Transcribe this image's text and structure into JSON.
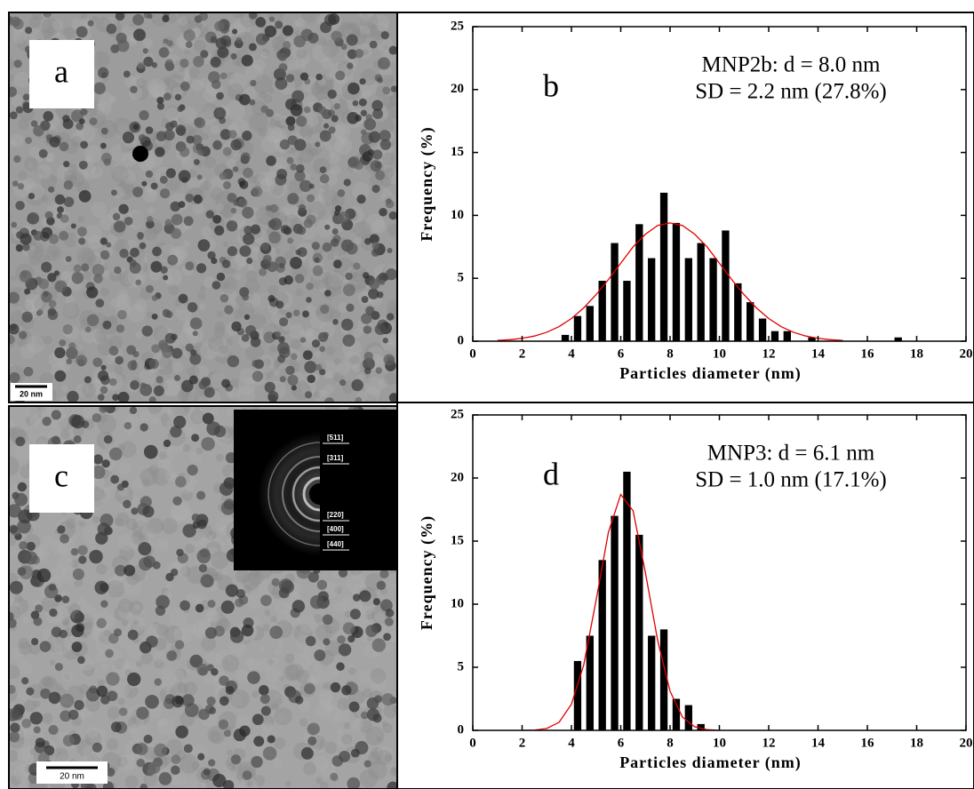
{
  "images": [
    {
      "label": "a",
      "scale_bar": "20 nm"
    },
    {
      "label": "c",
      "scale_bar": "20 nm",
      "inset_labels": [
        "[511]",
        "[311]",
        "[220]",
        "[400]",
        "[440]"
      ]
    }
  ],
  "chart_data": [
    {
      "type": "bar",
      "panel_label": "b",
      "annotations": [
        "MNP2b: d = 8.0 nm",
        "SD = 2.2 nm (27.8%)"
      ],
      "xlabel": "Particles diameter (nm)",
      "ylabel": "Frequency (%)",
      "x": [
        3.75,
        4.25,
        4.75,
        5.25,
        5.75,
        6.25,
        6.75,
        7.25,
        7.75,
        8.25,
        8.75,
        9.25,
        9.75,
        10.25,
        10.75,
        11.25,
        11.75,
        12.25,
        12.75,
        13.75,
        17.25
      ],
      "values": [
        0.5,
        2.0,
        2.8,
        4.8,
        7.8,
        4.8,
        9.3,
        6.6,
        11.8,
        9.4,
        6.6,
        7.8,
        6.6,
        8.8,
        4.6,
        3.1,
        1.8,
        0.8,
        0.8,
        0.3,
        0.3
      ],
      "color": "#000000",
      "fit": {
        "color": "#e00000",
        "x": [
          1,
          1.5,
          2,
          2.5,
          3,
          3.5,
          4,
          4.5,
          5,
          5.5,
          6,
          6.5,
          7,
          7.5,
          8,
          8.5,
          9,
          9.5,
          10,
          10.5,
          11,
          11.5,
          12,
          12.5,
          13,
          13.5,
          14,
          14.5,
          15
        ],
        "values": [
          0.06,
          0.12,
          0.23,
          0.41,
          0.71,
          1.16,
          1.8,
          2.65,
          3.7,
          4.9,
          6.2,
          7.5,
          8.5,
          9.2,
          9.4,
          9.2,
          8.5,
          7.5,
          6.2,
          4.9,
          3.7,
          2.65,
          1.8,
          1.16,
          0.71,
          0.41,
          0.23,
          0.12,
          0.06
        ]
      },
      "xlim": [
        0,
        20
      ],
      "xticks": [
        0,
        2,
        4,
        6,
        8,
        10,
        12,
        14,
        16,
        18,
        20
      ],
      "ylim": [
        0,
        25
      ],
      "yticks": [
        0,
        5,
        10,
        15,
        20,
        25
      ]
    },
    {
      "type": "bar",
      "panel_label": "d",
      "annotations": [
        "MNP3: d = 6.1 nm",
        "SD = 1.0 nm (17.1%)"
      ],
      "xlabel": "Particles diameter (nm)",
      "ylabel": "Frequency (%)",
      "x": [
        4.25,
        4.75,
        5.25,
        5.75,
        6.25,
        6.75,
        7.25,
        7.75,
        8.25,
        8.75,
        9.25
      ],
      "values": [
        5.5,
        7.5,
        13.5,
        17.0,
        20.5,
        15.5,
        7.5,
        8.0,
        2.5,
        2.0,
        0.5
      ],
      "color": "#000000",
      "fit": {
        "color": "#e00000",
        "x": [
          2,
          2.5,
          3,
          3.5,
          4,
          4.5,
          5,
          5.5,
          6,
          6.5,
          7,
          7.5,
          8,
          8.5,
          9,
          9.5,
          10
        ],
        "values": [
          0.0,
          0.02,
          0.15,
          0.64,
          2.07,
          5.2,
          10.3,
          15.7,
          18.7,
          17.4,
          12.5,
          7.1,
          3.1,
          1.06,
          0.28,
          0.06,
          0.0
        ]
      },
      "xlim": [
        0,
        20
      ],
      "xticks": [
        0,
        2,
        4,
        6,
        8,
        10,
        12,
        14,
        16,
        18,
        20
      ],
      "ylim": [
        0,
        25
      ],
      "yticks": [
        0,
        5,
        10,
        15,
        20,
        25
      ]
    }
  ]
}
